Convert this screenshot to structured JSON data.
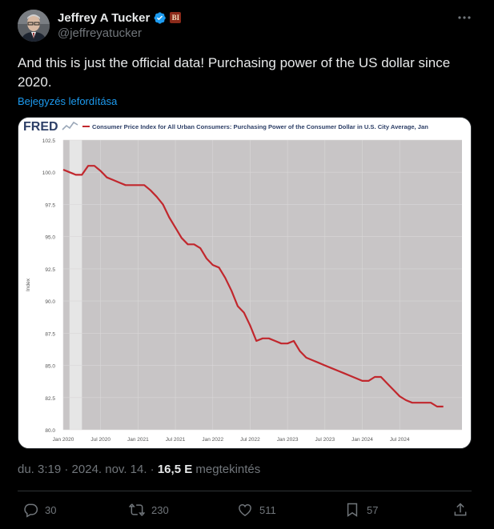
{
  "author": {
    "name": "Jeffrey A Tucker",
    "handle": "@jeffreyatucker",
    "affiliation_badge": "BI"
  },
  "tweet": {
    "text": "And this is just the official data! Purchasing power of the US dollar since 2020.",
    "translate_label": "Bejegyzés lefordítása",
    "timestamp": "du. 3:19 · 2024. nov. 14. · ",
    "views_count": "16,5 E",
    "views_label": " megtekintés"
  },
  "actions": {
    "replies": "30",
    "reposts": "230",
    "likes": "511",
    "bookmarks": "57"
  },
  "colors": {
    "accent": "#1d9bf0",
    "verified": "#1d9bf0",
    "series": "#c1272d",
    "plot_bg": "#c8c5c6",
    "recession": "#e6e6e6"
  },
  "chart_data": {
    "type": "line",
    "logo": "FRED",
    "title": "Consumer Price Index for All Urban Consumers: Purchasing Power of the Consumer Dollar in U.S. City Average, Jan",
    "ylabel": "Index",
    "ylim": [
      80.0,
      102.5
    ],
    "yticks": [
      "102.5",
      "100.0",
      "97.5",
      "95.0",
      "92.5",
      "90.0",
      "87.5",
      "85.0",
      "82.5",
      "80.0"
    ],
    "xticks": [
      "Jan 2020",
      "Jul 2020",
      "Jan 2021",
      "Jul 2021",
      "Jan 2022",
      "Jul 2022",
      "Jan 2023",
      "Jul 2023",
      "Jan 2024",
      "Jul 2024"
    ],
    "x_start": "2020-01",
    "recession": [
      "2020-02",
      "2020-04"
    ],
    "series": [
      {
        "values": [
          100.2,
          100.0,
          99.8,
          99.8,
          100.5,
          100.5,
          100.1,
          99.6,
          99.4,
          99.2,
          99.0,
          99.0,
          99.0,
          99.0,
          98.6,
          98.1,
          97.5,
          96.5,
          95.7,
          94.9,
          94.4,
          94.4,
          94.1,
          93.3,
          92.8,
          92.6,
          91.8,
          90.8,
          89.6,
          89.1,
          88.1,
          86.9,
          87.1,
          87.1,
          86.9,
          86.7,
          86.7,
          86.9,
          86.1,
          85.6,
          85.4,
          85.2,
          85.0,
          84.8,
          84.6,
          84.4,
          84.2,
          84.0,
          83.8,
          83.8,
          84.1,
          84.1,
          83.6,
          83.1,
          82.6,
          82.3,
          82.1,
          82.1,
          82.1,
          82.1,
          81.8,
          81.8
        ]
      }
    ]
  }
}
